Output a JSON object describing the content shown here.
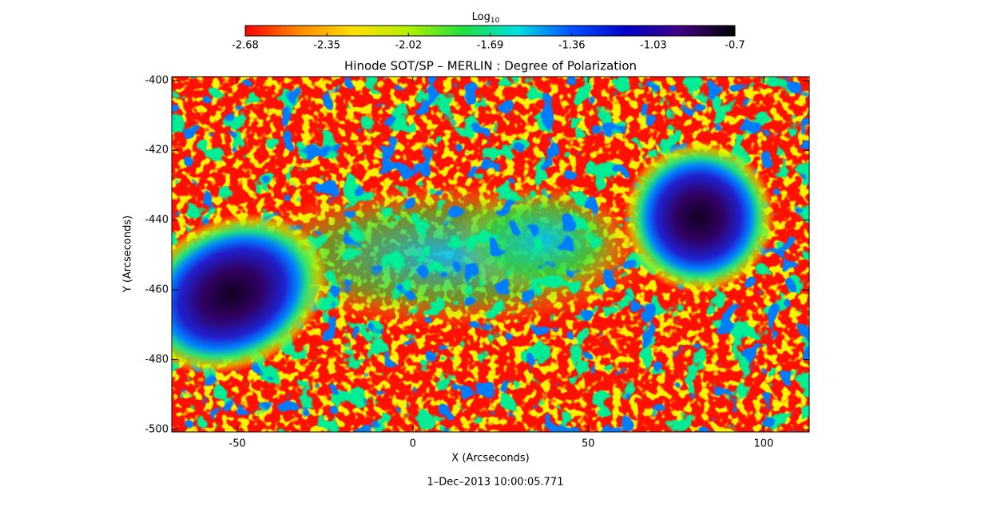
{
  "chart_data": {
    "type": "image",
    "title": "Hinode SOT/SP – MERLIN : Degree of Polarization",
    "x_label": "X (Arcseconds)",
    "y_label": "Y (Arcseconds)",
    "timestamp": "1–Dec–2013 10:00:05.771",
    "colorbar_label": "Log",
    "colorbar_label_sub": "10",
    "colorbar_lim": [
      -2.68,
      -0.7
    ],
    "colorbar_ticks": [
      -2.68,
      -2.35,
      -2.02,
      -1.69,
      -1.36,
      -1.03,
      -0.7
    ],
    "colormap": [
      "#ff0000",
      "#ff8c00",
      "#ffe000",
      "#b0f000",
      "#20e040",
      "#00e0e0",
      "#0050ff",
      "#0000c8",
      "#400080",
      "#000000"
    ],
    "xlim": [
      -68.7,
      113.0
    ],
    "xticks": [
      -50,
      0,
      50,
      100
    ],
    "ylim": [
      -500.7,
      -398.9
    ],
    "yticks": [
      -400,
      -420,
      -440,
      -460,
      -480,
      -500
    ]
  }
}
